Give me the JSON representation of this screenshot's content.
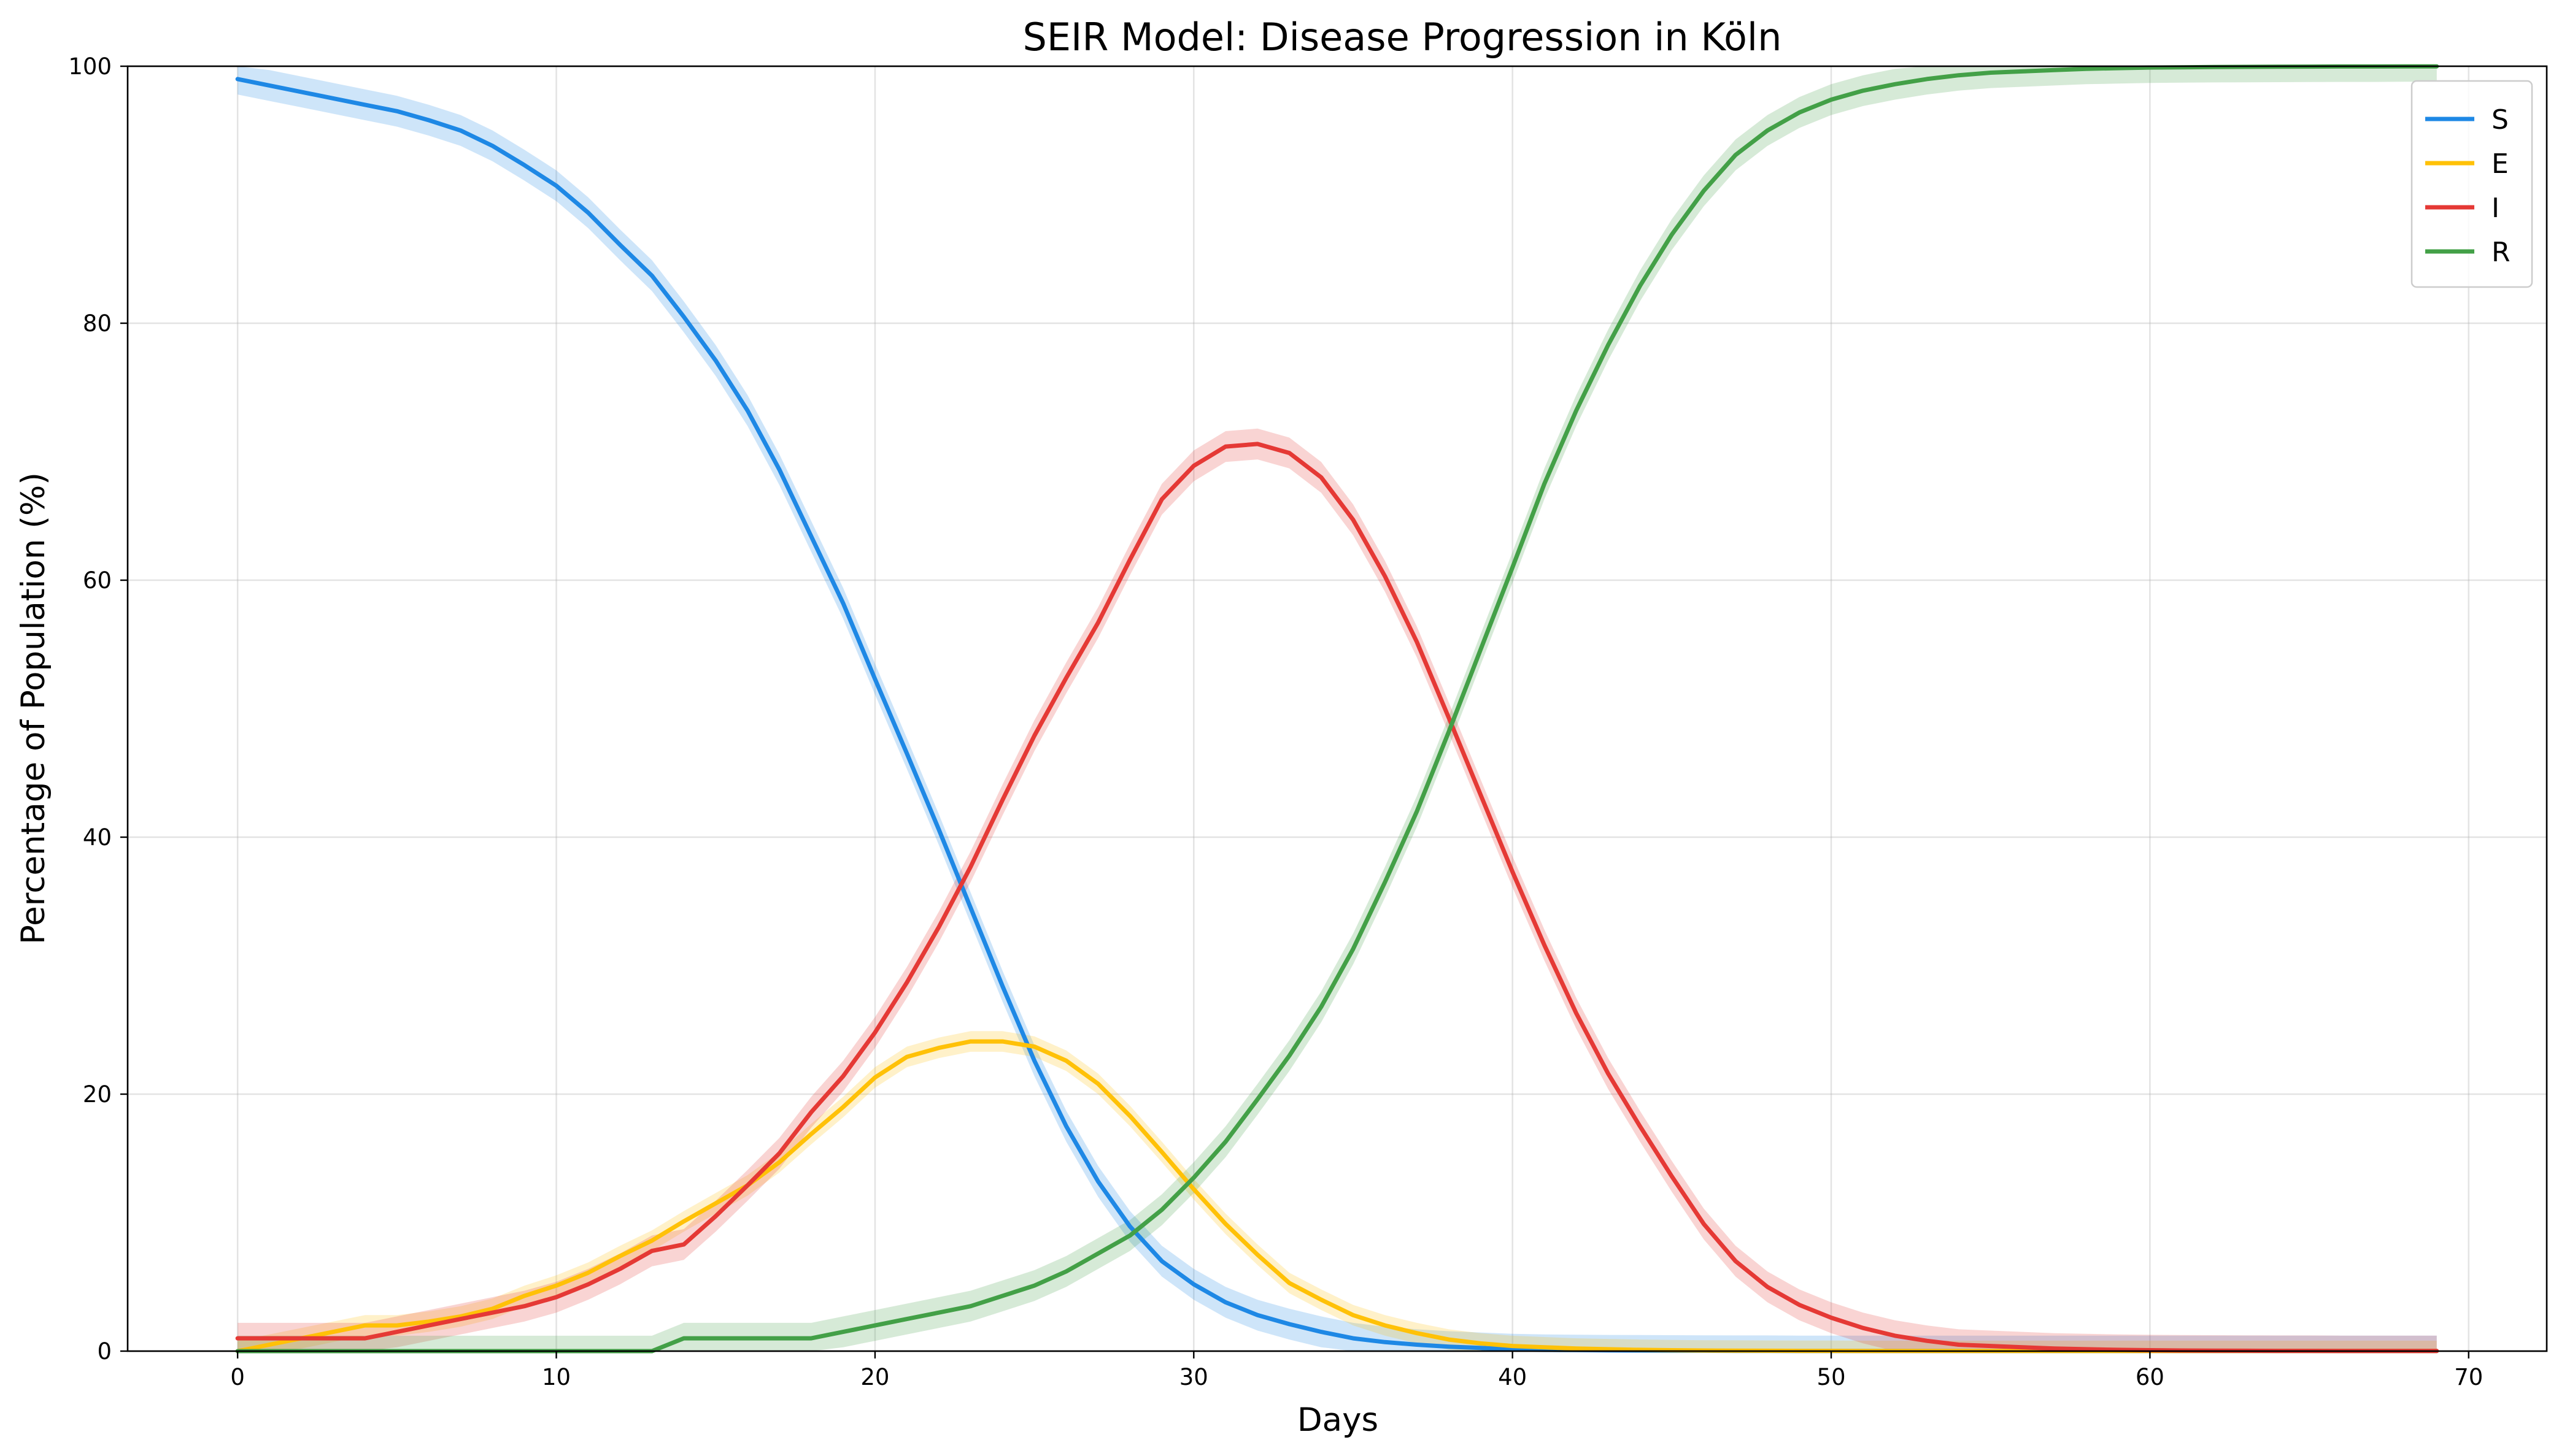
{
  "chart_data": {
    "type": "line",
    "title": "SEIR Model: Disease Progression in Köln",
    "xlabel": "Days",
    "ylabel": "Percentage of Population (%)",
    "xlim": [
      -3.45,
      72.45
    ],
    "ylim": [
      0,
      100
    ],
    "xticks": [
      0,
      10,
      20,
      30,
      40,
      50,
      60,
      70
    ],
    "yticks": [
      0,
      20,
      40,
      60,
      80,
      100
    ],
    "grid": true,
    "legend_position": "top-right",
    "x": [
      0,
      1,
      2,
      3,
      4,
      5,
      6,
      7,
      8,
      9,
      10,
      11,
      12,
      13,
      14,
      15,
      16,
      17,
      18,
      19,
      20,
      21,
      22,
      23,
      24,
      25,
      26,
      27,
      28,
      29,
      30,
      31,
      32,
      33,
      34,
      35,
      36,
      37,
      38,
      39,
      40,
      41,
      42,
      43,
      44,
      45,
      46,
      47,
      48,
      49,
      50,
      51,
      52,
      53,
      54,
      55,
      56,
      57,
      58,
      59,
      60,
      61,
      62,
      63,
      64,
      65,
      66,
      67,
      68,
      69
    ],
    "series": [
      {
        "name": "S",
        "color": "#1e88e5",
        "values": [
          99.0,
          98.5,
          98.0,
          97.5,
          97.0,
          96.5,
          95.8,
          95.0,
          93.8,
          92.3,
          90.7,
          88.6,
          86.1,
          83.7,
          80.5,
          77.1,
          73.2,
          68.6,
          63.4,
          58.2,
          52.3,
          46.5,
          40.6,
          34.5,
          28.4,
          22.6,
          17.5,
          13.2,
          9.7,
          7.0,
          5.2,
          3.8,
          2.8,
          2.1,
          1.5,
          1.0,
          0.7,
          0.5,
          0.35,
          0.25,
          0.15,
          0.1,
          0.08,
          0.06,
          0.05,
          0.04,
          0.03,
          0.02,
          0.02,
          0.01,
          0.01,
          0.01,
          0.01,
          0.01,
          0.01,
          0.01,
          0.01,
          0.01,
          0.01,
          0.01,
          0.01,
          0.01,
          0.01,
          0.01,
          0.01,
          0.01,
          0.01,
          0.01,
          0.01,
          0.01
        ],
        "band": 1.2
      },
      {
        "name": "E",
        "color": "#ffc107",
        "values": [
          0.0,
          0.5,
          1.0,
          1.5,
          2.0,
          2.0,
          2.3,
          2.7,
          3.3,
          4.3,
          5.1,
          6.1,
          7.4,
          8.6,
          10.1,
          11.5,
          12.9,
          14.7,
          16.9,
          19.0,
          21.3,
          22.9,
          23.6,
          24.1,
          24.1,
          23.7,
          22.6,
          20.8,
          18.3,
          15.5,
          12.6,
          9.9,
          7.5,
          5.3,
          4.0,
          2.8,
          2.0,
          1.4,
          0.9,
          0.6,
          0.4,
          0.3,
          0.2,
          0.15,
          0.1,
          0.07,
          0.05,
          0.04,
          0.03,
          0.02,
          0.02,
          0.01,
          0.01,
          0.01,
          0.01,
          0.01,
          0.01,
          0.01,
          0.01,
          0.01,
          0.01,
          0.01,
          0.01,
          0.01,
          0.01,
          0.01,
          0.01,
          0.01,
          0.01,
          0.01
        ],
        "band": 0.8
      },
      {
        "name": "I",
        "color": "#e53935",
        "values": [
          1.0,
          1.0,
          1.0,
          1.0,
          1.0,
          1.5,
          2.0,
          2.5,
          3.0,
          3.5,
          4.2,
          5.2,
          6.4,
          7.8,
          8.3,
          10.5,
          12.9,
          15.4,
          18.6,
          21.4,
          24.8,
          28.7,
          33.0,
          37.7,
          42.9,
          47.9,
          52.4,
          56.7,
          61.6,
          66.3,
          68.9,
          70.4,
          70.6,
          69.9,
          68.0,
          64.7,
          60.3,
          55.2,
          49.3,
          43.3,
          37.3,
          31.6,
          26.3,
          21.6,
          17.5,
          13.6,
          9.9,
          7.0,
          5.0,
          3.6,
          2.6,
          1.8,
          1.2,
          0.8,
          0.5,
          0.4,
          0.3,
          0.2,
          0.15,
          0.1,
          0.07,
          0.05,
          0.04,
          0.03,
          0.02,
          0.02,
          0.01,
          0.01,
          0.01,
          0.01
        ],
        "band": 1.2
      },
      {
        "name": "R",
        "color": "#43a047",
        "values": [
          0.0,
          0.0,
          0.0,
          0.0,
          0.0,
          0.0,
          0.0,
          0.0,
          0.0,
          0.0,
          0.0,
          0.0,
          0.0,
          0.0,
          1.0,
          1.0,
          1.0,
          1.0,
          1.0,
          1.5,
          2.0,
          2.5,
          3.0,
          3.5,
          4.3,
          5.1,
          6.2,
          7.6,
          9.0,
          11.0,
          13.5,
          16.3,
          19.6,
          23.0,
          26.8,
          31.3,
          36.5,
          42.0,
          48.2,
          54.6,
          61.0,
          67.5,
          73.2,
          78.3,
          82.9,
          86.9,
          90.3,
          93.1,
          95.0,
          96.4,
          97.4,
          98.1,
          98.6,
          99.0,
          99.3,
          99.5,
          99.6,
          99.7,
          99.8,
          99.85,
          99.9,
          99.92,
          99.94,
          99.95,
          99.96,
          99.97,
          99.98,
          99.98,
          99.99,
          99.99
        ],
        "band": 1.2
      }
    ]
  }
}
